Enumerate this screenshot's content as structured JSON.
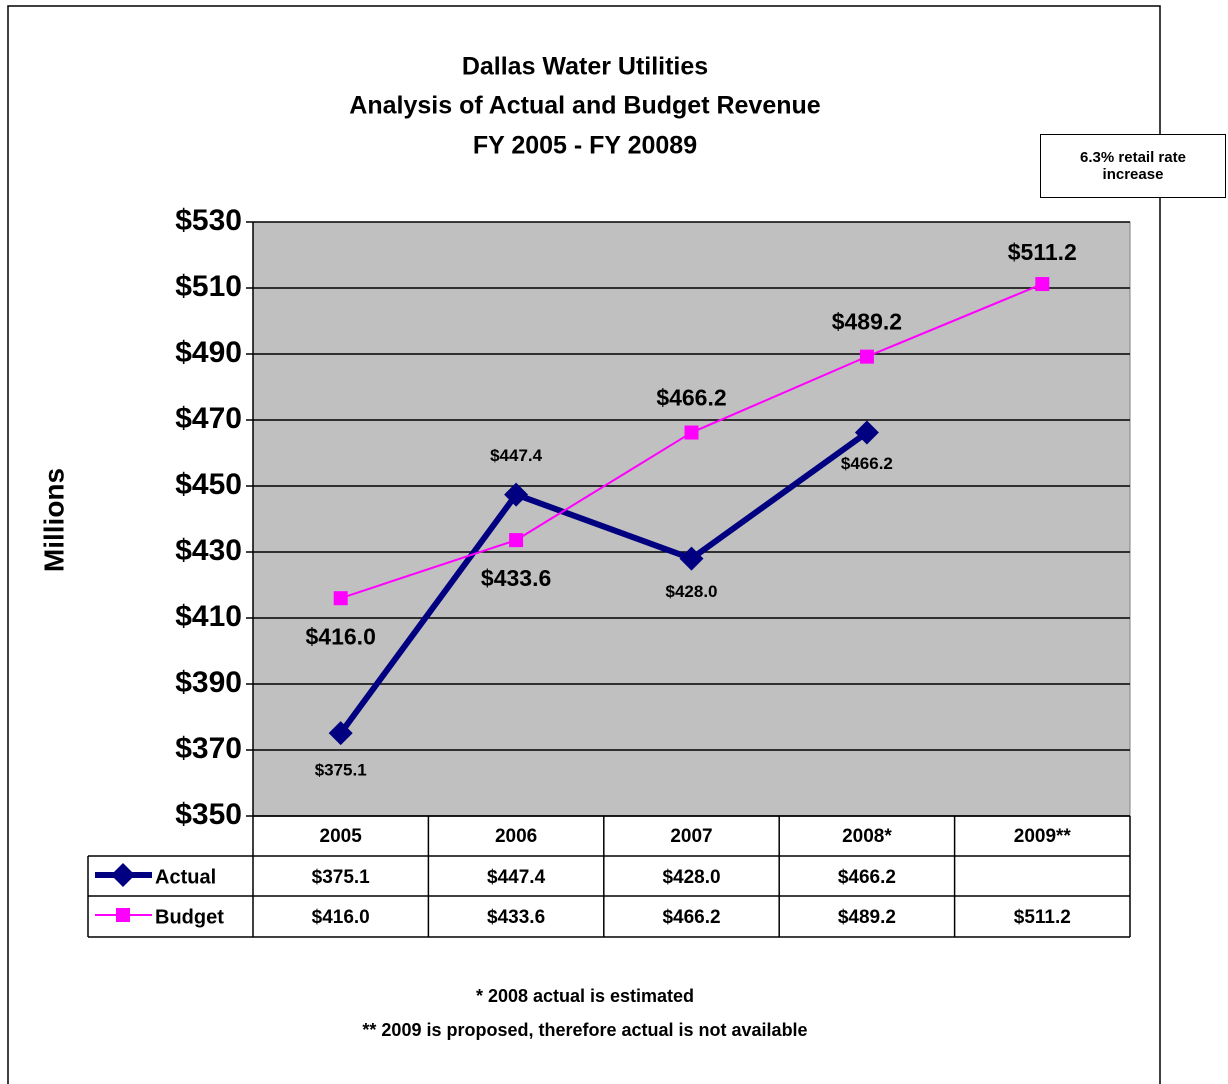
{
  "chart_data": {
    "type": "line",
    "title": [
      "Dallas Water Utilities",
      "Analysis of Actual and Budget Revenue",
      "FY 2005 - FY 20089"
    ],
    "ylabel": "Millions",
    "annotation": "6.3% retail rate increase",
    "notes": [
      "* 2008 actual is estimated",
      "** 2009 is proposed,  therefore actual is not available"
    ],
    "categories": [
      "2005",
      "2006",
      "2007",
      "2008*",
      "2009**"
    ],
    "series": [
      {
        "name": "Actual",
        "color": "#000080",
        "marker": "diamond",
        "values": [
          375.1,
          447.4,
          428.0,
          466.2,
          null
        ],
        "value_labels": [
          "$375.1",
          "$447.4",
          "$428.0",
          "$466.2",
          null
        ]
      },
      {
        "name": "Budget",
        "color": "#ff00ff",
        "marker": "square",
        "values": [
          416.0,
          433.6,
          466.2,
          489.2,
          511.2
        ],
        "value_labels": [
          "$416.0",
          "$433.6",
          "$466.2",
          "$489.2",
          "$511.2"
        ]
      }
    ],
    "ylim": [
      350,
      530
    ],
    "yticks": [
      {
        "value": 350,
        "label": "$350"
      },
      {
        "value": 370,
        "label": "$370"
      },
      {
        "value": 390,
        "label": "$390"
      },
      {
        "value": 410,
        "label": "$410"
      },
      {
        "value": 430,
        "label": "$430"
      },
      {
        "value": 450,
        "label": "$450"
      },
      {
        "value": 470,
        "label": "$470"
      },
      {
        "value": 490,
        "label": "$490"
      },
      {
        "value": 510,
        "label": "$510"
      },
      {
        "value": 530,
        "label": "$530"
      }
    ],
    "grid": true
  }
}
